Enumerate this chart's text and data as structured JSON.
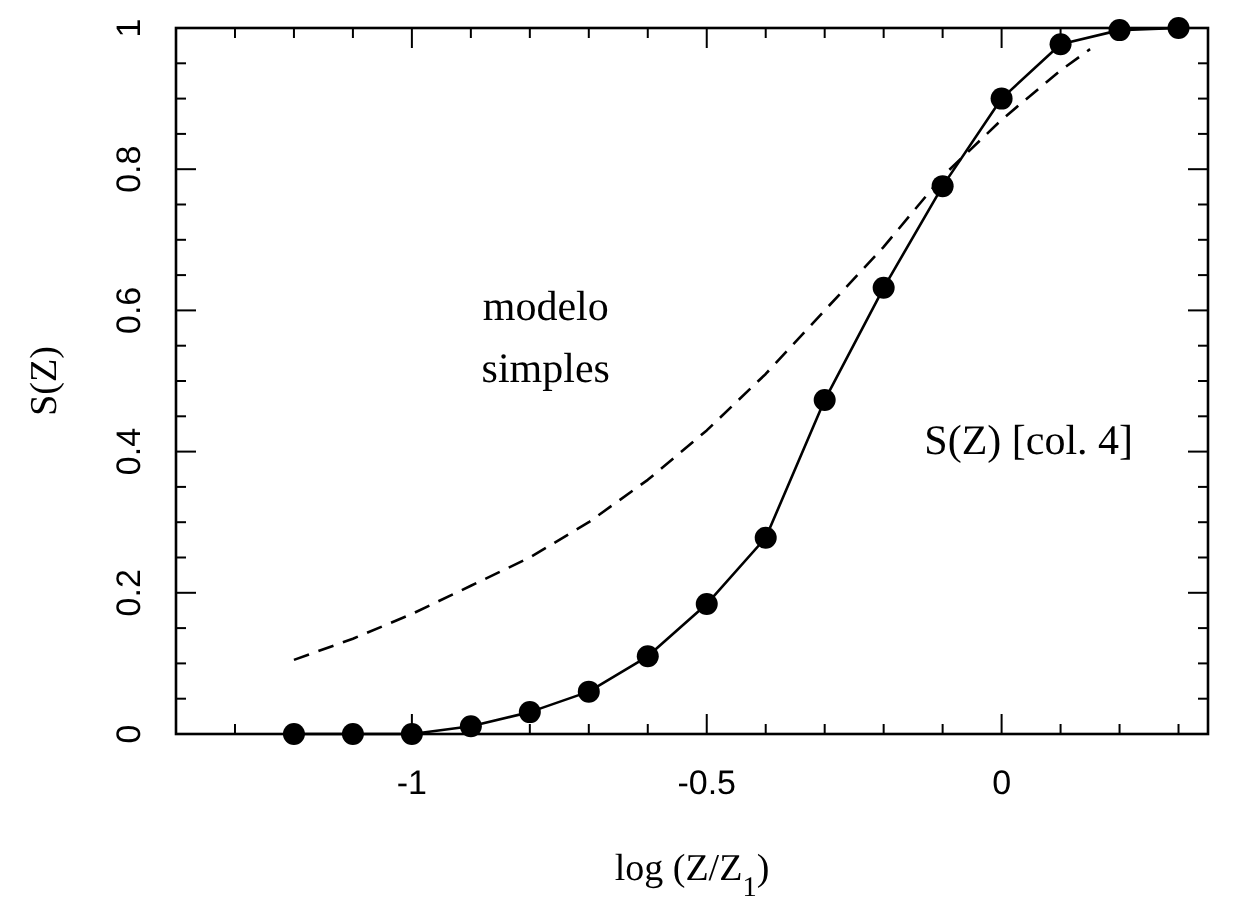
{
  "chart_data": {
    "type": "line",
    "xlabel": "log (Z/Z$_{1}$)",
    "ylabel": "S(Z)",
    "xlim": [
      -1.4,
      0.35
    ],
    "ylim": [
      0,
      1
    ],
    "xticks": [
      {
        "value": -1.4,
        "label": null
      },
      {
        "value": -1.3,
        "label": null
      },
      {
        "value": -1.2,
        "label": null
      },
      {
        "value": -1.1,
        "label": null
      },
      -1,
      {
        "value": -0.9,
        "label": null
      },
      {
        "value": -0.8,
        "label": null
      },
      {
        "value": -0.7,
        "label": null
      },
      {
        "value": -0.6,
        "label": null
      },
      -0.5,
      {
        "value": -0.4,
        "label": null
      },
      {
        "value": -0.3,
        "label": null
      },
      {
        "value": -0.2,
        "label": null
      },
      {
        "value": -0.1,
        "label": null
      },
      0,
      {
        "value": 0.1,
        "label": null
      },
      {
        "value": 0.2,
        "label": null
      },
      {
        "value": 0.3,
        "label": null
      }
    ],
    "yticks": [
      0,
      {
        "value": 0.05,
        "label": null
      },
      {
        "value": 0.1,
        "label": null
      },
      {
        "value": 0.15,
        "label": null
      },
      0.2,
      {
        "value": 0.25,
        "label": null
      },
      {
        "value": 0.3,
        "label": null
      },
      {
        "value": 0.35,
        "label": null
      },
      0.4,
      {
        "value": 0.45,
        "label": null
      },
      {
        "value": 0.5,
        "label": null
      },
      {
        "value": 0.55,
        "label": null
      },
      0.6,
      {
        "value": 0.65,
        "label": null
      },
      {
        "value": 0.7,
        "label": null
      },
      {
        "value": 0.75,
        "label": null
      },
      0.8,
      {
        "value": 0.85,
        "label": null
      },
      {
        "value": 0.9,
        "label": null
      },
      {
        "value": 0.95,
        "label": null
      },
      1
    ],
    "grid": false,
    "series": [
      {
        "name": "S(Z) [col. 4]",
        "color": "#000000",
        "marker": "circle",
        "line_style": "solid",
        "x": [
          -1.2,
          -1.1,
          -1.0,
          -0.9,
          -0.8,
          -0.7,
          -0.6,
          -0.5,
          -0.4,
          -0.3,
          -0.2,
          -0.1,
          0,
          0.1,
          0.2,
          0.3
        ],
        "values": [
          0,
          0,
          0,
          0.011,
          0.031,
          0.06,
          0.11,
          0.184,
          0.278,
          0.473,
          0.632,
          0.776,
          0.9,
          0.977,
          0.997,
          1.0
        ]
      },
      {
        "name": "modelo simples",
        "color": "#000000",
        "marker": "none",
        "line_style": "dashed",
        "x": [
          -1.2,
          -1.1,
          -1.0,
          -0.9,
          -0.8,
          -0.7,
          -0.6,
          -0.5,
          -0.4,
          -0.3,
          -0.2,
          -0.1,
          0,
          0.1,
          0.15
        ],
        "values": [
          0.105,
          0.135,
          0.17,
          0.21,
          0.25,
          0.3,
          0.36,
          0.43,
          0.51,
          0.6,
          0.69,
          0.79,
          0.87,
          0.94,
          0.97
        ]
      }
    ]
  }
}
